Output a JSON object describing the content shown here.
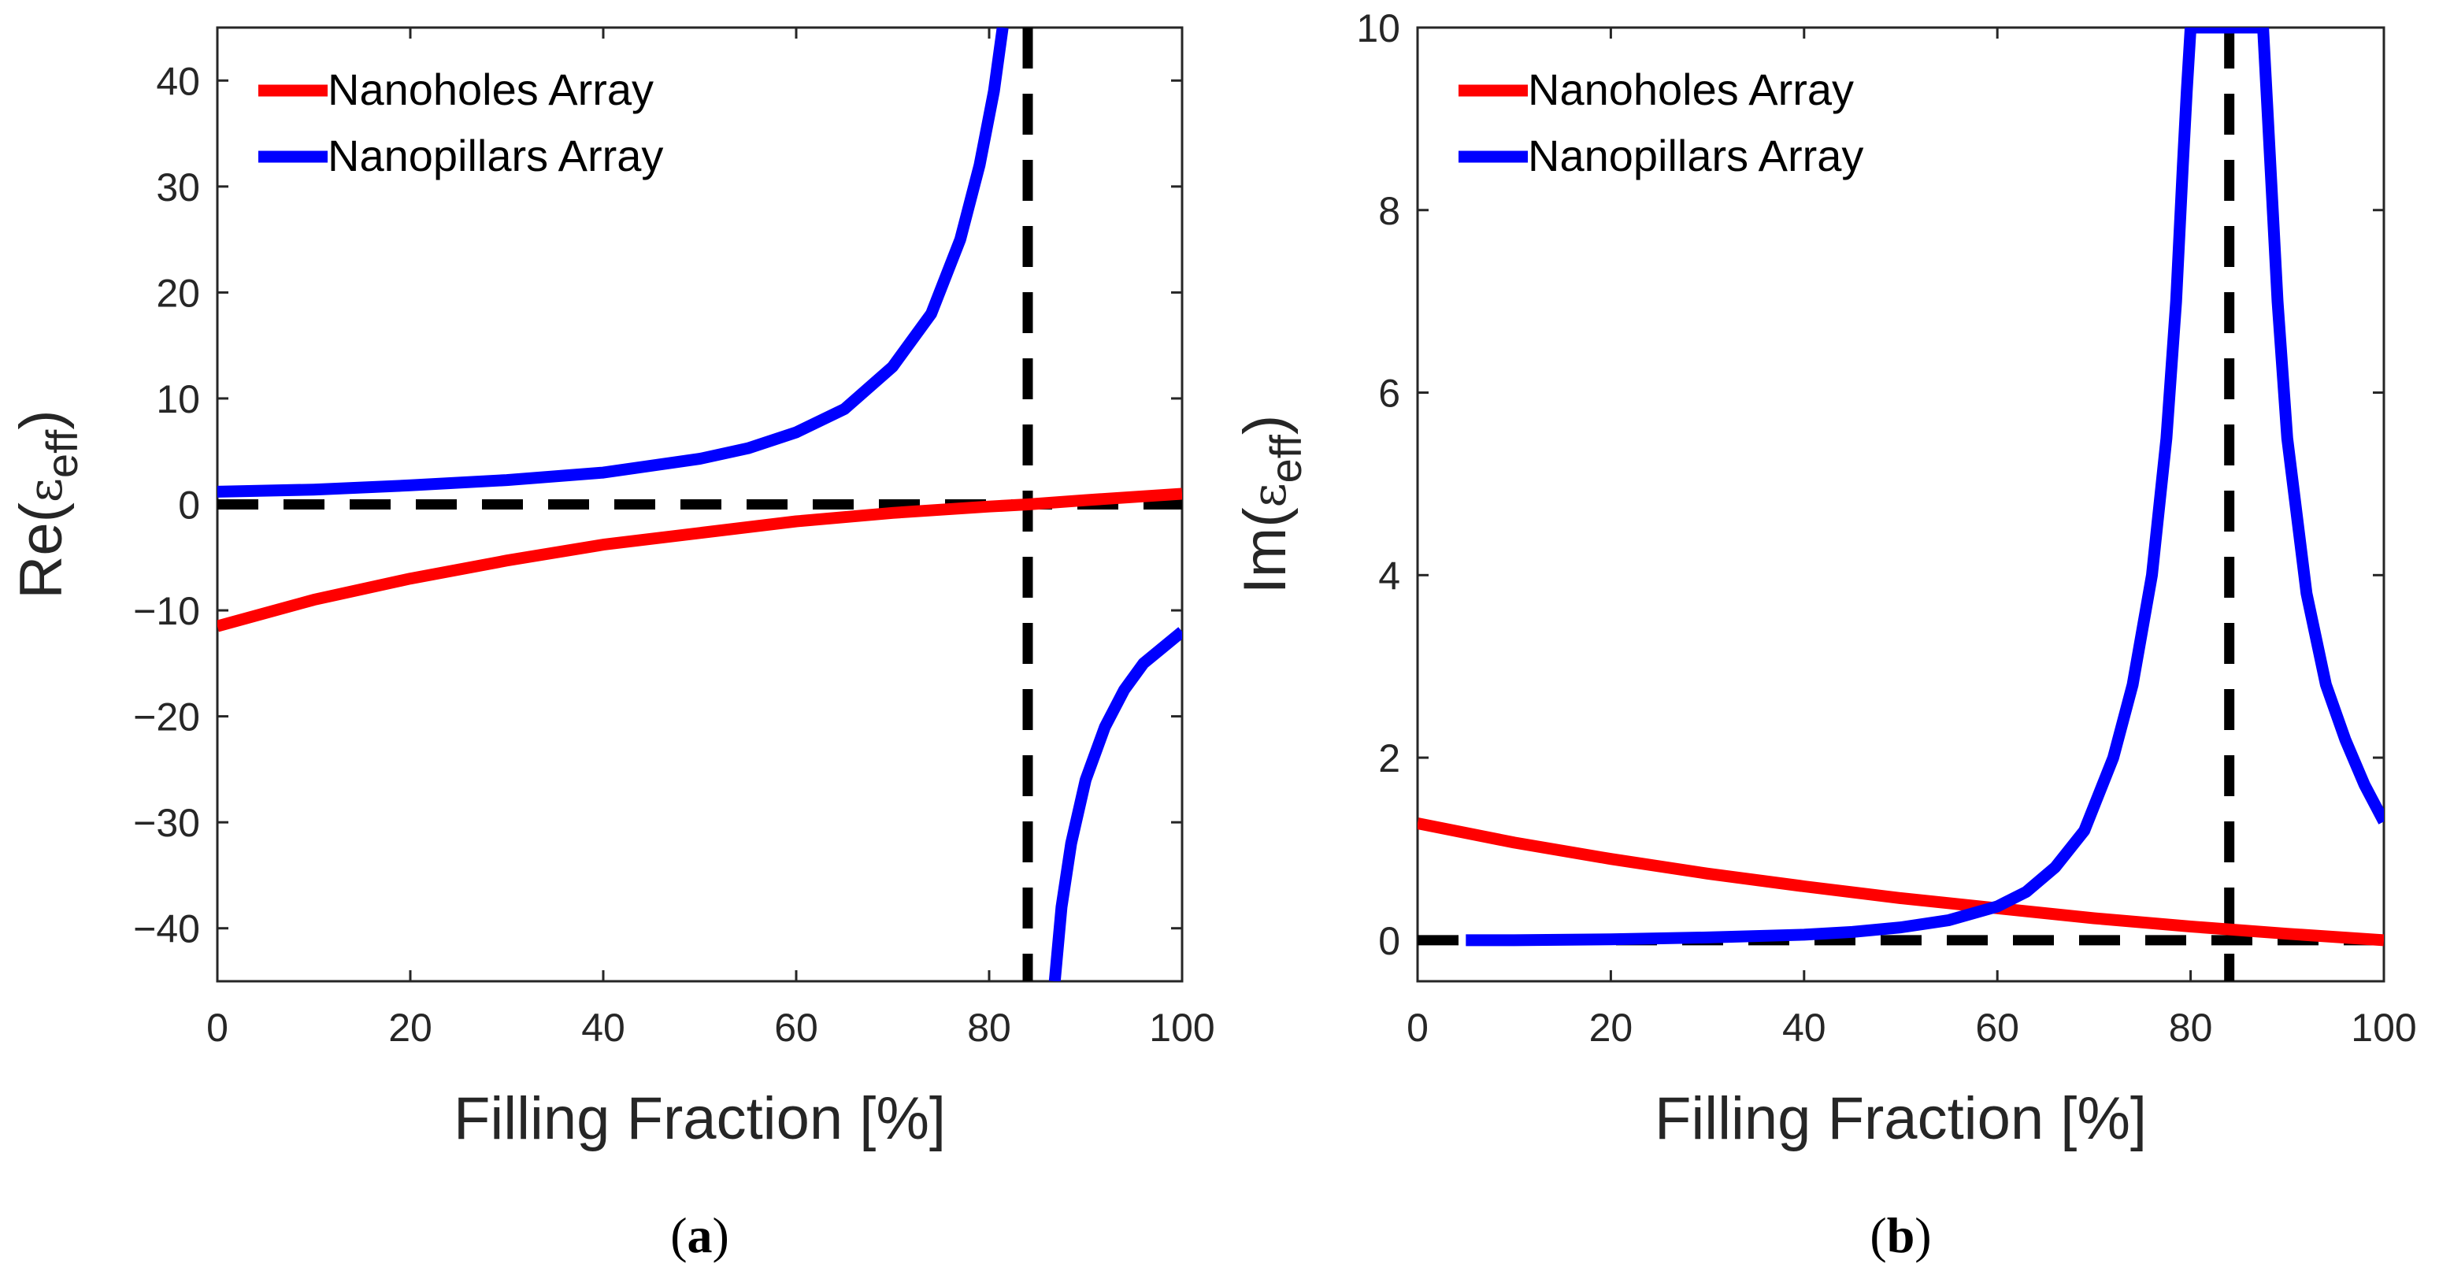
{
  "chart_data": [
    {
      "type": "line",
      "panel_label": "(a)",
      "xlabel": "Filling Fraction [%]",
      "ylabel": {
        "prefix": "Re(",
        "symbol": "ε",
        "subscript": "eff",
        "suffix": ")"
      },
      "xlim": [
        0,
        100
      ],
      "ylim": [
        -45,
        45
      ],
      "xticks": [
        0,
        20,
        40,
        60,
        80,
        100
      ],
      "yticks": [
        -40,
        -30,
        -20,
        -10,
        0,
        10,
        20,
        30,
        40
      ],
      "ytick_labels": [
        "−40",
        "−30",
        "−20",
        "−10",
        "0",
        "10",
        "20",
        "30",
        "40"
      ],
      "legend_position": "top-left",
      "reference_lines": {
        "horizontal_y": 0,
        "vertical_x": 84
      },
      "series": [
        {
          "name": "Nanoholes Array",
          "color": "#ff0000",
          "x": [
            0,
            10,
            20,
            30,
            40,
            50,
            60,
            70,
            80,
            84,
            90,
            100
          ],
          "y": [
            -11.5,
            -9.0,
            -7.0,
            -5.3,
            -3.8,
            -2.7,
            -1.6,
            -0.8,
            -0.2,
            0.0,
            0.4,
            1.0
          ]
        },
        {
          "name": "Nanopillars Array",
          "color": "#0000ff",
          "x": [
            0,
            10,
            20,
            30,
            40,
            50,
            55,
            60,
            65,
            70,
            74,
            77,
            79,
            80.5,
            81.4
          ],
          "y": [
            1.2,
            1.4,
            1.8,
            2.3,
            3.0,
            4.3,
            5.3,
            6.8,
            9.0,
            13.0,
            18.0,
            25.0,
            32.0,
            39.0,
            45.0
          ]
        },
        {
          "name": "Nanopillars Array",
          "color": "#0000ff",
          "legend": false,
          "x": [
            86.8,
            87.5,
            88.5,
            90,
            92,
            94,
            96,
            98,
            100
          ],
          "y": [
            -45.0,
            -38.0,
            -32.0,
            -26.0,
            -21.0,
            -17.5,
            -15.0,
            -13.5,
            -12.0
          ]
        }
      ]
    },
    {
      "type": "line",
      "panel_label": "(b)",
      "xlabel": "Filling Fraction [%]",
      "ylabel": {
        "prefix": "Im(",
        "symbol": "ε",
        "subscript": "eff",
        "suffix": ")"
      },
      "xlim": [
        0,
        100
      ],
      "ylim": [
        -0.45,
        10
      ],
      "xticks": [
        0,
        20,
        40,
        60,
        80,
        100
      ],
      "yticks": [
        0,
        2,
        4,
        6,
        8,
        10
      ],
      "ytick_labels": [
        "0",
        "2",
        "4",
        "6",
        "8",
        "10"
      ],
      "legend_position": "top-left",
      "reference_lines": {
        "horizontal_y": 0,
        "vertical_x": 84
      },
      "series": [
        {
          "name": "Nanoholes Array",
          "color": "#ff0000",
          "x": [
            0,
            10,
            20,
            30,
            40,
            50,
            60,
            70,
            80,
            90,
            100
          ],
          "y": [
            1.28,
            1.07,
            0.89,
            0.73,
            0.59,
            0.46,
            0.35,
            0.24,
            0.15,
            0.07,
            0.0
          ]
        },
        {
          "name": "Nanopillars Array",
          "color": "#0000ff",
          "x": [
            5,
            10,
            20,
            30,
            40,
            45,
            50,
            55,
            60,
            63,
            66,
            69,
            72,
            74,
            76,
            77.5,
            78.5,
            79.2,
            79.6,
            80,
            80.3,
            87.5,
            88,
            89,
            90,
            92,
            94,
            96,
            98,
            100
          ],
          "y": [
            0.0,
            0.0,
            0.01,
            0.03,
            0.06,
            0.09,
            0.14,
            0.22,
            0.37,
            0.53,
            0.8,
            1.2,
            2.0,
            2.8,
            4.0,
            5.5,
            7.0,
            8.5,
            9.3,
            10.0,
            10.0,
            10.0,
            9.0,
            7.0,
            5.5,
            3.8,
            2.8,
            2.2,
            1.7,
            1.3
          ]
        }
      ]
    }
  ]
}
